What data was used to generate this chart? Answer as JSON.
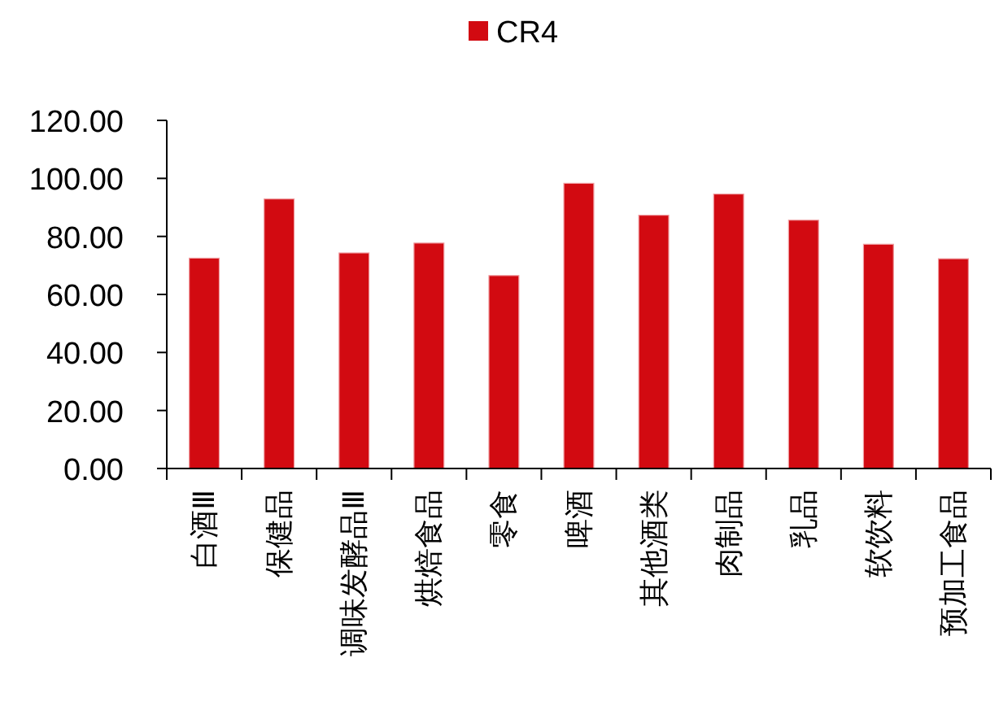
{
  "chart_data": {
    "type": "bar",
    "categories": [
      "白酒Ⅲ",
      "保健品",
      "调味发酵品Ⅲ",
      "烘焙食品",
      "零食",
      "啤酒",
      "其他酒类",
      "肉制品",
      "乳品",
      "软饮料",
      "预加工食品"
    ],
    "series": [
      {
        "name": "CR4",
        "color": "#d20a11",
        "values": [
          72.5,
          92.9,
          74.3,
          77.7,
          66.5,
          98.3,
          87.3,
          94.6,
          85.6,
          77.3,
          72.3
        ]
      }
    ],
    "ylim": [
      0,
      120
    ],
    "yticks": [
      {
        "value": 0,
        "label": "0.00"
      },
      {
        "value": 20,
        "label": "20.00"
      },
      {
        "value": 40,
        "label": "40.00"
      },
      {
        "value": 60,
        "label": "60.00"
      },
      {
        "value": 80,
        "label": "80.00"
      },
      {
        "value": 100,
        "label": "100.00"
      },
      {
        "value": 120,
        "label": "120.00"
      }
    ],
    "legend": "top",
    "grid": false
  }
}
